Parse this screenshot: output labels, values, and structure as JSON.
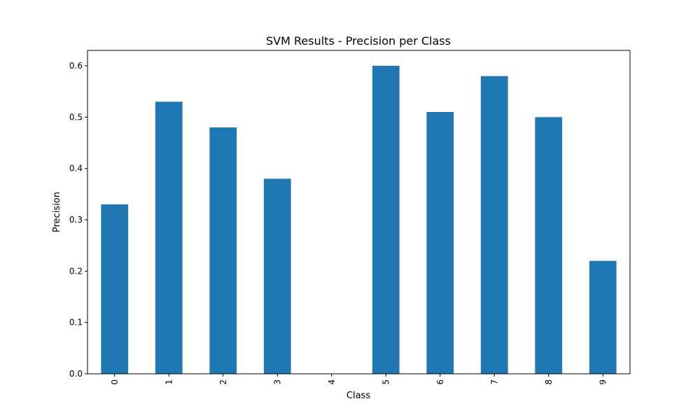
{
  "chart_data": {
    "type": "bar",
    "title": "SVM Results - Precision per Class",
    "xlabel": "Class",
    "ylabel": "Precision",
    "categories": [
      "0",
      "1",
      "2",
      "3",
      "4",
      "5",
      "6",
      "7",
      "8",
      "9"
    ],
    "values": [
      0.33,
      0.53,
      0.48,
      0.38,
      0.0,
      0.6,
      0.51,
      0.58,
      0.5,
      0.22
    ],
    "ylim": [
      0,
      0.63
    ],
    "yticks": [
      0.0,
      0.1,
      0.2,
      0.3,
      0.4,
      0.5,
      0.6
    ],
    "ytick_labels": [
      "0.0",
      "0.1",
      "0.2",
      "0.3",
      "0.4",
      "0.5",
      "0.6"
    ],
    "xtick_rotation": "vertical",
    "grid": false,
    "legend": false,
    "bar_color": "#1f77b4"
  }
}
